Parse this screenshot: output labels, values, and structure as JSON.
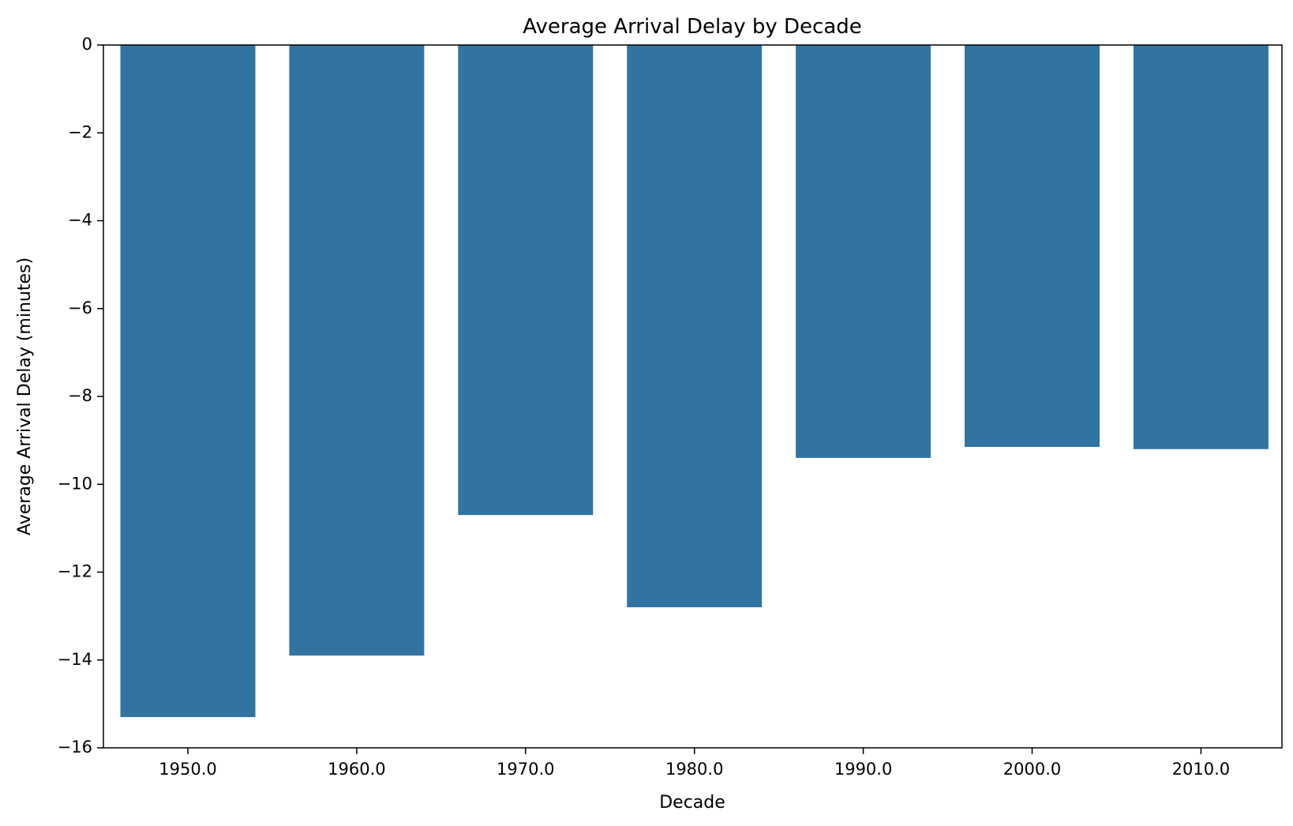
{
  "chart_data": {
    "type": "bar",
    "title": "Average Arrival Delay by Decade",
    "xlabel": "Decade",
    "ylabel": "Average Arrival Delay (minutes)",
    "categories": [
      "1950.0",
      "1960.0",
      "1970.0",
      "1980.0",
      "1990.0",
      "2000.0",
      "2010.0"
    ],
    "values": [
      -15.3,
      -13.9,
      -10.7,
      -12.8,
      -9.4,
      -9.15,
      -9.2
    ],
    "ylim": [
      -16,
      0
    ],
    "yticks": [
      0,
      -2,
      -4,
      -6,
      -8,
      -10,
      -12,
      -14,
      -16
    ],
    "ytick_labels": [
      "0",
      "−2",
      "−4",
      "−6",
      "−8",
      "−10",
      "−12",
      "−14",
      "−16"
    ],
    "bar_color": "#3274a1",
    "grid": false
  }
}
